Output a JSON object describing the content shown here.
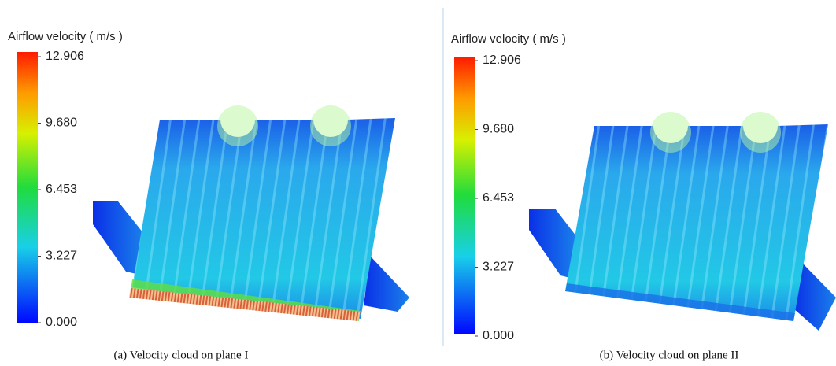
{
  "panels": [
    {
      "colorbar": {
        "title": "Airflow velocity ( m/s )",
        "ticks": [
          {
            "value": 12.906,
            "label": "12.906"
          },
          {
            "value": 9.68,
            "label": "9.680"
          },
          {
            "value": 6.453,
            "label": "6.453"
          },
          {
            "value": 3.227,
            "label": "3.227"
          },
          {
            "value": 0,
            "label": "0.000"
          }
        ]
      },
      "caption": "(a) Velocity cloud on plane I"
    },
    {
      "colorbar": {
        "title": "Airflow velocity ( m/s )",
        "ticks": [
          {
            "value": 12.906,
            "label": "12.906"
          },
          {
            "value": 9.68,
            "label": "9.680"
          },
          {
            "value": 6.453,
            "label": "6.453"
          },
          {
            "value": 3.227,
            "label": "3.227"
          },
          {
            "value": 0,
            "label": "0.000"
          }
        ]
      },
      "caption": "(b) Velocity cloud on plane II"
    }
  ]
}
